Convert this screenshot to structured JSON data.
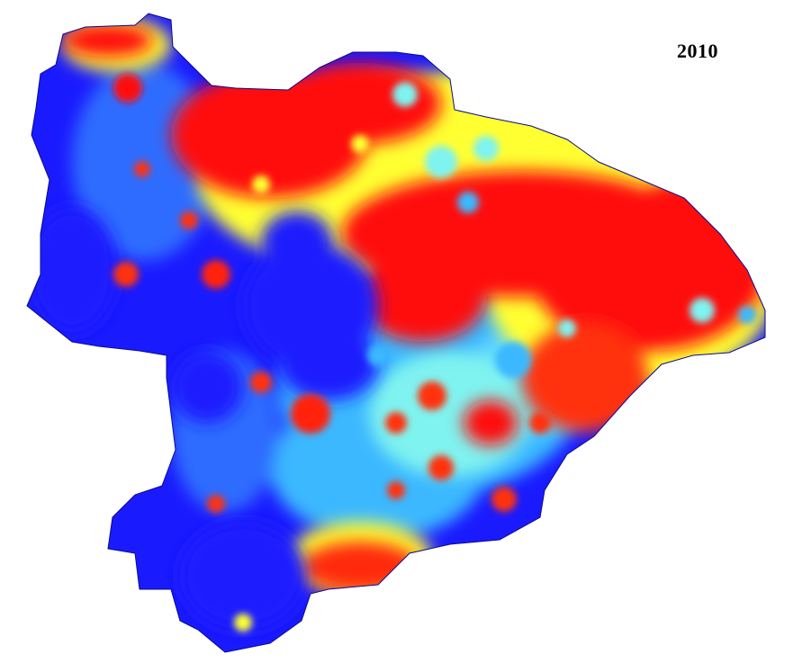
{
  "map": {
    "year_label": "2010",
    "colors": {
      "low": "#1a1aff",
      "low_mid": "#3ab8ff",
      "mid": "#7ff3f0",
      "mid_high": "#ffff33",
      "high": "#ff1010",
      "background": "#ffffff"
    }
  }
}
